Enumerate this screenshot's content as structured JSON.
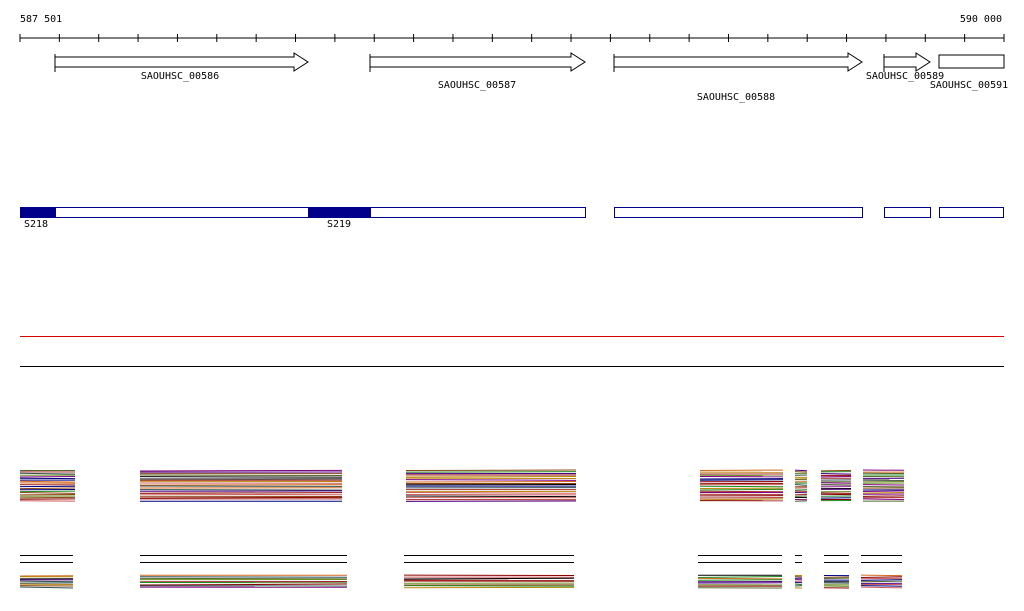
{
  "ruler": {
    "start_label": "587 501",
    "end_label": "590 000"
  },
  "genes": [
    {
      "label": "SAOUHSC_00586"
    },
    {
      "label": "SAOUHSC_00587"
    },
    {
      "label": "SAOUHSC_00588"
    },
    {
      "label": "SAOUHSC_00589"
    },
    {
      "label": "SAOUHSC_00591"
    }
  ],
  "segments": [
    {
      "label": "S218"
    },
    {
      "label": "S219"
    }
  ]
}
